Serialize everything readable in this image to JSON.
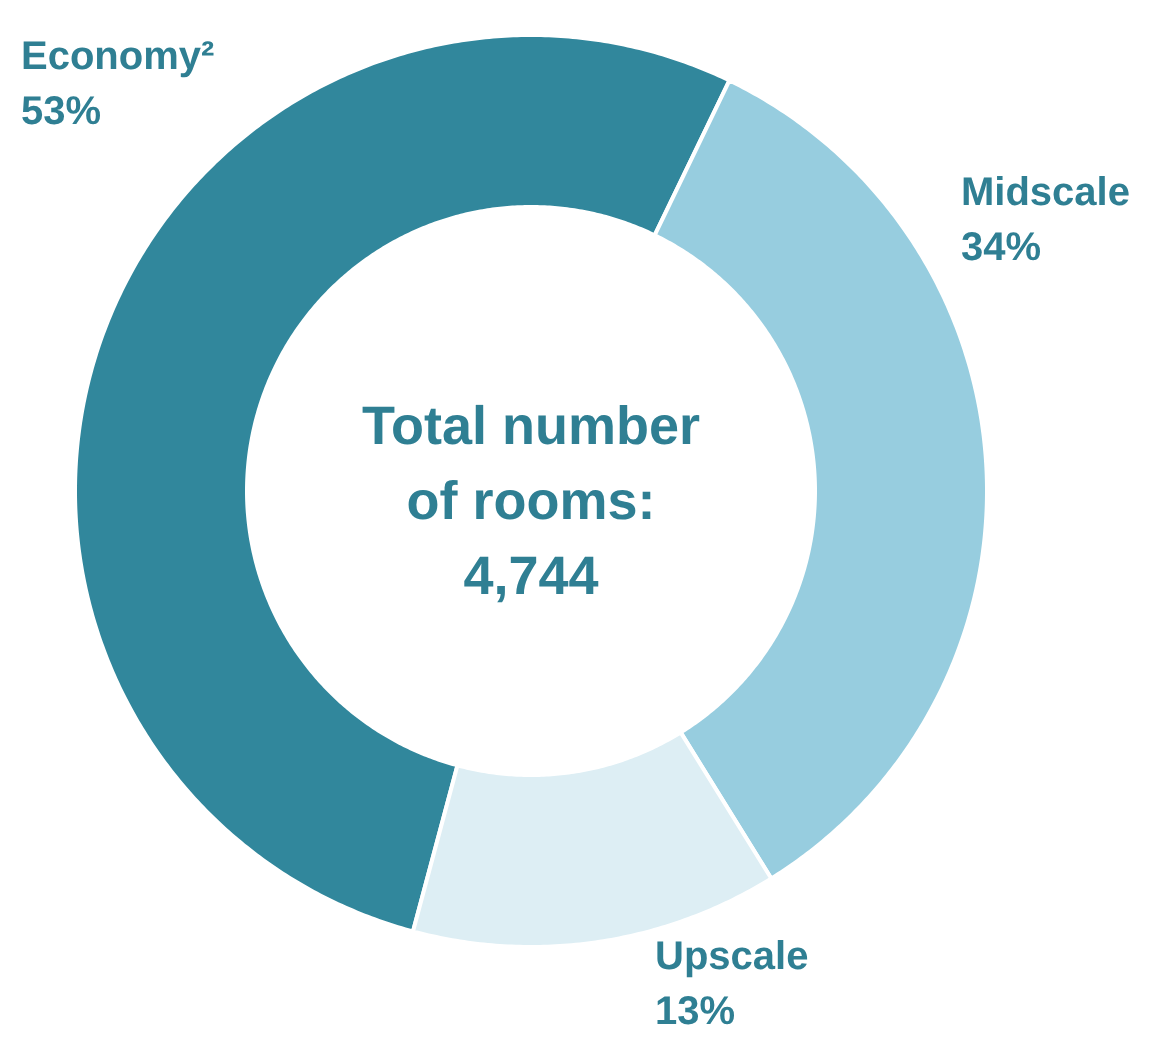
{
  "chart_data": {
    "type": "donut",
    "categories": [
      "Economy²",
      "Midscale",
      "Upscale"
    ],
    "values": [
      53,
      34,
      13
    ],
    "value_labels": [
      "53%",
      "34%",
      "13%"
    ],
    "colors": [
      "#31879c",
      "#97cddf",
      "#ddeef4"
    ],
    "annotations": [
      "Total number\nof rooms:\n4,744"
    ]
  }
}
